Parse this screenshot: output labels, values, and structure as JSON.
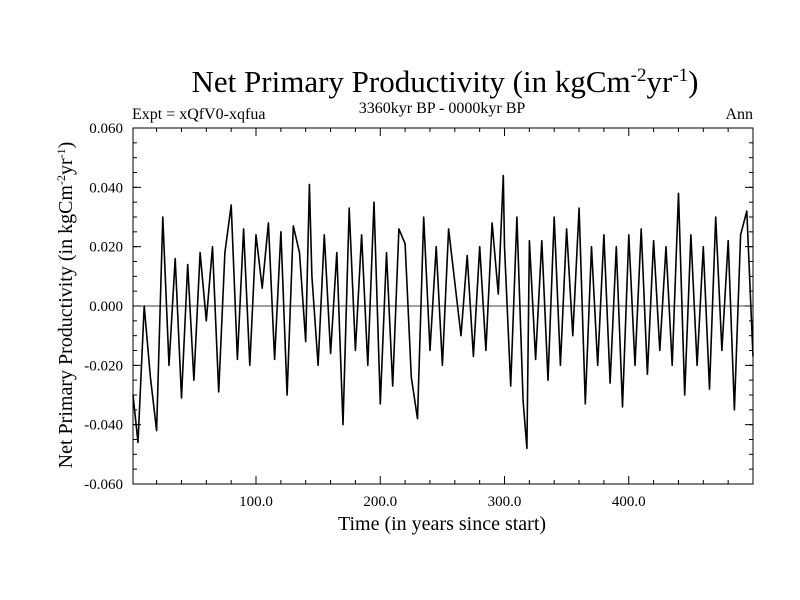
{
  "chart_data": {
    "type": "line",
    "title": "Net Primary Productivity (in kgCm",
    "title_sup1": "-2",
    "title_mid": "yr",
    "title_sup2": "-1",
    "title_end": ")",
    "subtitle_left": "Expt = xQfV0-xqfua",
    "subtitle_center": "3360kyr BP - 0000kyr BP",
    "subtitle_right": "Ann",
    "xlabel": "Time (in years since start)",
    "ylabel": "Net Primary Productivity (in kgCm",
    "ylabel_sup1": "-2",
    "ylabel_mid": "yr",
    "ylabel_sup2": "-1",
    "ylabel_end": ")",
    "xlim": [
      1,
      500
    ],
    "ylim": [
      -0.06,
      0.06
    ],
    "x_ticks": [
      100,
      200,
      300,
      400
    ],
    "x_tick_labels": [
      "100.0",
      "200.0",
      "300.0",
      "400.0"
    ],
    "y_ticks": [
      -0.06,
      -0.04,
      -0.02,
      0.0,
      0.02,
      0.04,
      0.06
    ],
    "y_tick_labels": [
      "-0.060",
      "-0.040",
      "-0.020",
      "0.000",
      "0.020",
      "0.040",
      "0.060"
    ],
    "zero_line": 0.0,
    "line_color": "#000000",
    "x": [
      1,
      5,
      10,
      15,
      20,
      25,
      30,
      35,
      40,
      45,
      50,
      55,
      60,
      65,
      70,
      75,
      80,
      85,
      90,
      95,
      100,
      105,
      110,
      115,
      120,
      125,
      130,
      135,
      140,
      143,
      145,
      150,
      155,
      160,
      165,
      170,
      175,
      180,
      185,
      190,
      195,
      200,
      205,
      210,
      215,
      220,
      225,
      230,
      235,
      240,
      245,
      250,
      255,
      260,
      265,
      270,
      275,
      280,
      285,
      290,
      295,
      299,
      300,
      305,
      310,
      315,
      318,
      320,
      325,
      330,
      335,
      340,
      345,
      350,
      355,
      360,
      365,
      370,
      375,
      380,
      385,
      390,
      395,
      400,
      405,
      410,
      415,
      420,
      425,
      430,
      435,
      440,
      445,
      450,
      455,
      460,
      465,
      470,
      475,
      480,
      485,
      490,
      495,
      500
    ],
    "values": [
      -0.03,
      -0.046,
      0.0,
      -0.024,
      -0.042,
      0.03,
      -0.02,
      0.016,
      -0.031,
      0.014,
      -0.025,
      0.018,
      -0.005,
      0.02,
      -0.029,
      0.018,
      0.034,
      -0.018,
      0.026,
      -0.02,
      0.024,
      0.006,
      0.028,
      -0.018,
      0.025,
      -0.03,
      0.027,
      0.018,
      -0.012,
      0.041,
      0.01,
      -0.02,
      0.024,
      -0.016,
      0.018,
      -0.04,
      0.033,
      -0.015,
      0.024,
      -0.02,
      0.035,
      -0.033,
      0.018,
      -0.027,
      0.026,
      0.021,
      -0.024,
      -0.038,
      0.03,
      -0.015,
      0.02,
      -0.02,
      0.026,
      0.008,
      -0.01,
      0.017,
      -0.017,
      0.02,
      -0.015,
      0.028,
      0.004,
      0.044,
      0.02,
      -0.027,
      0.03,
      -0.032,
      -0.048,
      0.022,
      -0.018,
      0.022,
      -0.025,
      0.03,
      -0.02,
      0.026,
      -0.01,
      0.033,
      -0.033,
      0.02,
      -0.02,
      0.024,
      -0.026,
      0.02,
      -0.034,
      0.024,
      -0.02,
      0.026,
      -0.023,
      0.022,
      -0.015,
      0.02,
      -0.02,
      0.038,
      -0.03,
      0.024,
      -0.02,
      0.02,
      -0.028,
      0.03,
      -0.015,
      0.022,
      -0.035,
      0.024,
      0.032,
      -0.017
    ]
  }
}
